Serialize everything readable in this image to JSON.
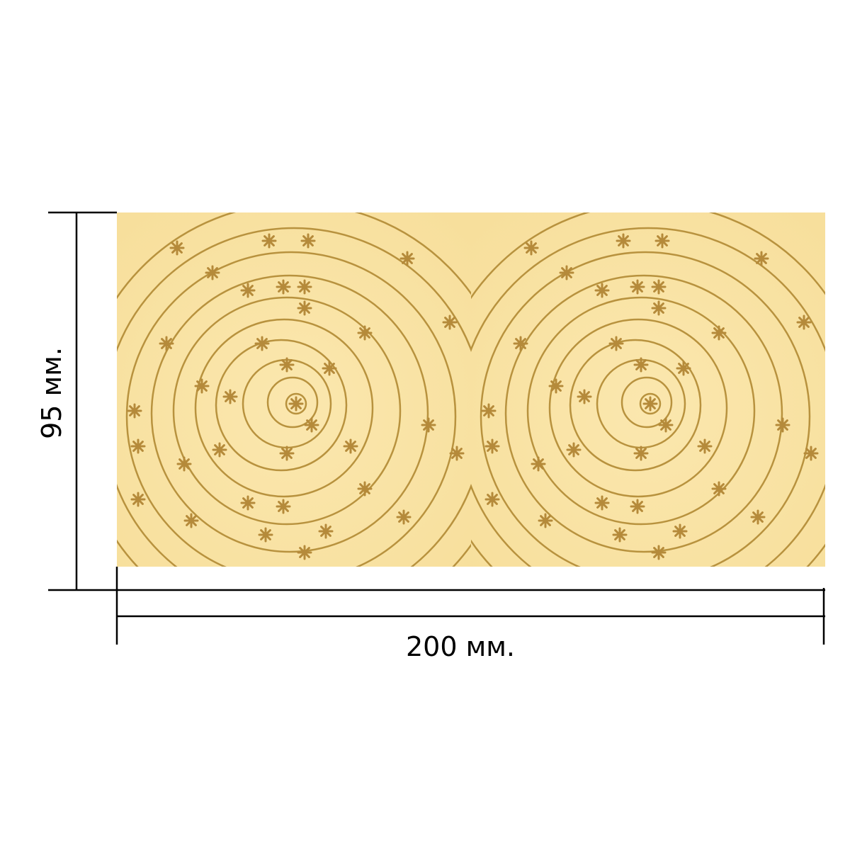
{
  "height_label": "95 мм.",
  "width_label": "200 мм."
}
